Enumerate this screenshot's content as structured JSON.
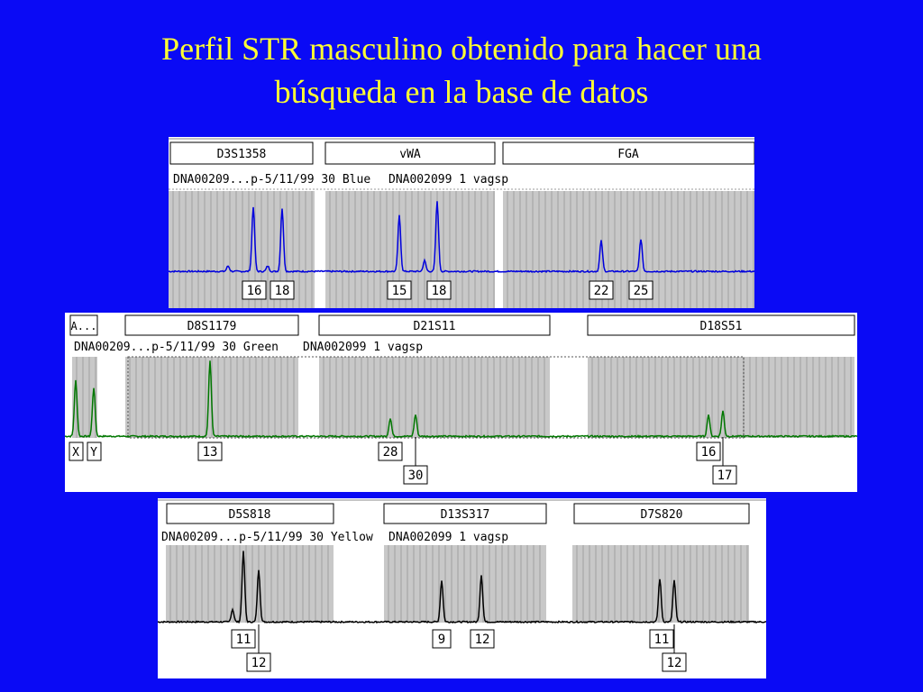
{
  "slide": {
    "title_line1": "Perfil STR masculino obtenido para hacer una",
    "title_line2": "búsqueda en la base de datos"
  },
  "colors": {
    "background": "#0a0af5",
    "title": "#ffff33",
    "blue": "#0000cc",
    "green": "#006600",
    "yellow_dye": "#000000",
    "region": "#c8c8c8"
  },
  "panels": [
    {
      "id": "blue",
      "info": "DNA00209...p-5/11/99 30 Blue",
      "sample": "DNA002099 1 vagsp",
      "color": "#0000dd",
      "loci": [
        "D3S1358",
        "vWA",
        "FGA"
      ],
      "alleles": [
        "16",
        "18",
        "15",
        "18",
        "22",
        "25"
      ]
    },
    {
      "id": "green",
      "info": "DNA00209...p-5/11/99 30 Green",
      "sample": "DNA002099 1 vagsp",
      "color": "#007700",
      "loci": [
        "A...",
        "D8S1179",
        "D21S11",
        "D18S51"
      ],
      "alleles": [
        "X",
        "Y",
        "13",
        "28",
        "30",
        "16",
        "17"
      ]
    },
    {
      "id": "yellow",
      "info": "DNA00209...p-5/11/99 30 Yellow",
      "sample": "DNA002099 1 vagsp",
      "color": "#000000",
      "loci": [
        "D5S818",
        "D13S317",
        "D7S820"
      ],
      "alleles": [
        "11",
        "12",
        "9",
        "12",
        "11",
        "12"
      ]
    }
  ]
}
